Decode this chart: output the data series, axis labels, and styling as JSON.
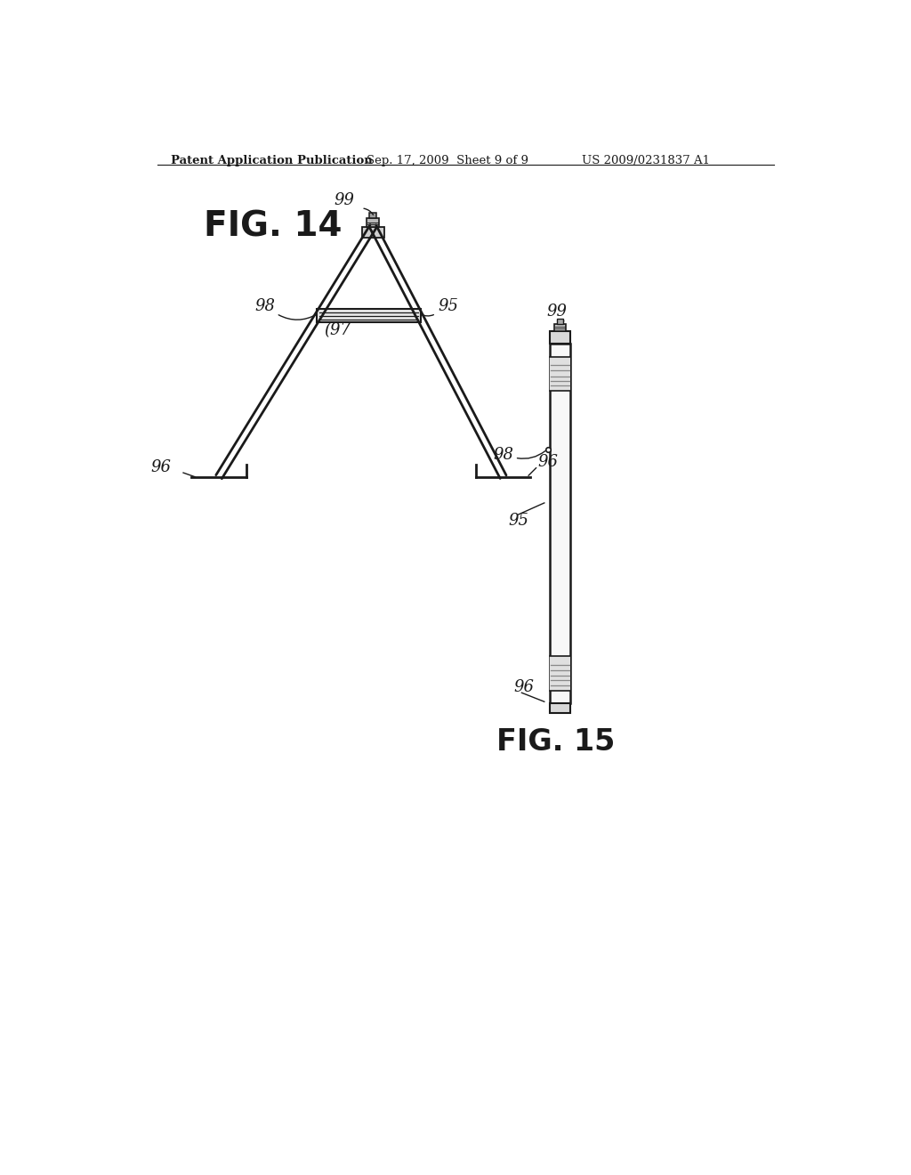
{
  "bg_color": "#ffffff",
  "header_text": "Patent Application Publication",
  "header_date": "Sep. 17, 2009  Sheet 9 of 9",
  "header_patent": "US 2009/0231837 A1",
  "fig14_label": "FIG. 14",
  "fig15_label": "FIG. 15",
  "line_color": "#1a1a1a",
  "text_color": "#1a1a1a"
}
